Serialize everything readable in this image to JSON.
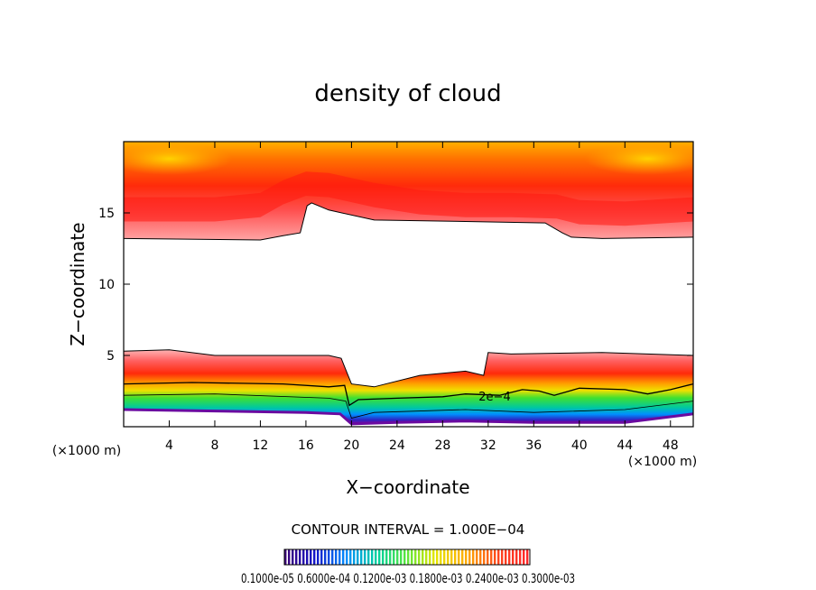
{
  "chart_data": {
    "type": "heatmap",
    "title": "density of cloud",
    "xlabel": "X−coordinate",
    "ylabel": "Z−coordinate",
    "x_unit_left": "(×1000 m)",
    "x_unit_right": "(×1000 m)",
    "xlim": [
      0,
      50
    ],
    "ylim": [
      0,
      20
    ],
    "x_ticks": [
      {
        "value": 4,
        "label": "4"
      },
      {
        "value": 8,
        "label": "8"
      },
      {
        "value": 12,
        "label": "12"
      },
      {
        "value": 16,
        "label": "16"
      },
      {
        "value": 20,
        "label": "20"
      },
      {
        "value": 24,
        "label": "24"
      },
      {
        "value": 28,
        "label": "28"
      },
      {
        "value": 32,
        "label": "32"
      },
      {
        "value": 36,
        "label": "36"
      },
      {
        "value": 40,
        "label": "40"
      },
      {
        "value": 44,
        "label": "44"
      },
      {
        "value": 48,
        "label": "48"
      }
    ],
    "y_ticks": [
      {
        "value": 5,
        "label": "5"
      },
      {
        "value": 10,
        "label": "10"
      },
      {
        "value": 15,
        "label": "15"
      }
    ],
    "contour_label": "2e−4",
    "contour_interval_text": "CONTOUR INTERVAL = 1.000E−04",
    "colorbar_text": "0.1000e-05 0.6000e-04 0.1200e-03 0.1800e-03 0.2400e-03 0.3000e-03",
    "colorbar_range": [
      1e-06,
      0.0003
    ],
    "upper_layer": {
      "top": 19.8,
      "bottom_profile": [
        [
          0,
          13.2
        ],
        [
          12,
          13.1
        ],
        [
          14,
          13.4
        ],
        [
          15.5,
          13.6
        ],
        [
          16.1,
          15.5
        ],
        [
          16.5,
          15.7
        ],
        [
          18,
          15.2
        ],
        [
          22,
          14.5
        ],
        [
          30,
          14.4
        ],
        [
          37,
          14.3
        ],
        [
          38.5,
          13.6
        ],
        [
          39.3,
          13.3
        ],
        [
          42,
          13.2
        ],
        [
          50,
          13.3
        ]
      ],
      "core_profile": [
        [
          0,
          15.3
        ],
        [
          8,
          15.3
        ],
        [
          12,
          15.6
        ],
        [
          14,
          16.5
        ],
        [
          16,
          17.1
        ],
        [
          18,
          17.0
        ],
        [
          22,
          16.3
        ],
        [
          26,
          15.8
        ],
        [
          30,
          15.6
        ],
        [
          34,
          15.6
        ],
        [
          38,
          15.5
        ],
        [
          40,
          15.1
        ],
        [
          44,
          15.0
        ],
        [
          50,
          15.3
        ]
      ],
      "bright_spots": [
        [
          4,
          18.8
        ],
        [
          46,
          18.8
        ]
      ]
    },
    "lower_layer": {
      "top_profile": [
        [
          0,
          5.3
        ],
        [
          4,
          5.4
        ],
        [
          8,
          5.0
        ],
        [
          16,
          5.0
        ],
        [
          18,
          5.0
        ],
        [
          19.1,
          4.8
        ],
        [
          20,
          3.0
        ],
        [
          22,
          2.8
        ],
        [
          26,
          3.6
        ],
        [
          30,
          3.9
        ],
        [
          31.6,
          3.6
        ],
        [
          32,
          5.2
        ],
        [
          34,
          5.1
        ],
        [
          42,
          5.2
        ],
        [
          50,
          5.0
        ]
      ],
      "contour_2e4": [
        [
          0,
          3.0
        ],
        [
          6,
          3.1
        ],
        [
          14,
          3.0
        ],
        [
          18,
          2.8
        ],
        [
          19.4,
          2.9
        ],
        [
          19.8,
          1.5
        ],
        [
          20.6,
          1.9
        ],
        [
          24,
          2.0
        ],
        [
          28,
          2.1
        ],
        [
          30,
          2.3
        ],
        [
          33,
          2.2
        ],
        [
          35,
          2.6
        ],
        [
          36.5,
          2.5
        ],
        [
          37.8,
          2.2
        ],
        [
          40,
          2.7
        ],
        [
          44,
          2.6
        ],
        [
          46,
          2.3
        ],
        [
          48,
          2.6
        ],
        [
          50,
          3.0
        ]
      ],
      "green_profile": [
        [
          0,
          2.2
        ],
        [
          8,
          2.3
        ],
        [
          18,
          2.0
        ],
        [
          19.5,
          1.8
        ],
        [
          20,
          0.6
        ],
        [
          22,
          1.0
        ],
        [
          30,
          1.2
        ],
        [
          36,
          1.0
        ],
        [
          44,
          1.2
        ],
        [
          50,
          1.8
        ]
      ],
      "base_profile": [
        [
          0,
          1.2
        ],
        [
          8,
          1.1
        ],
        [
          16,
          1.0
        ],
        [
          19,
          0.9
        ],
        [
          20,
          0.2
        ],
        [
          24,
          0.3
        ],
        [
          30,
          0.4
        ],
        [
          36,
          0.3
        ],
        [
          44,
          0.3
        ],
        [
          50,
          0.9
        ]
      ]
    }
  }
}
